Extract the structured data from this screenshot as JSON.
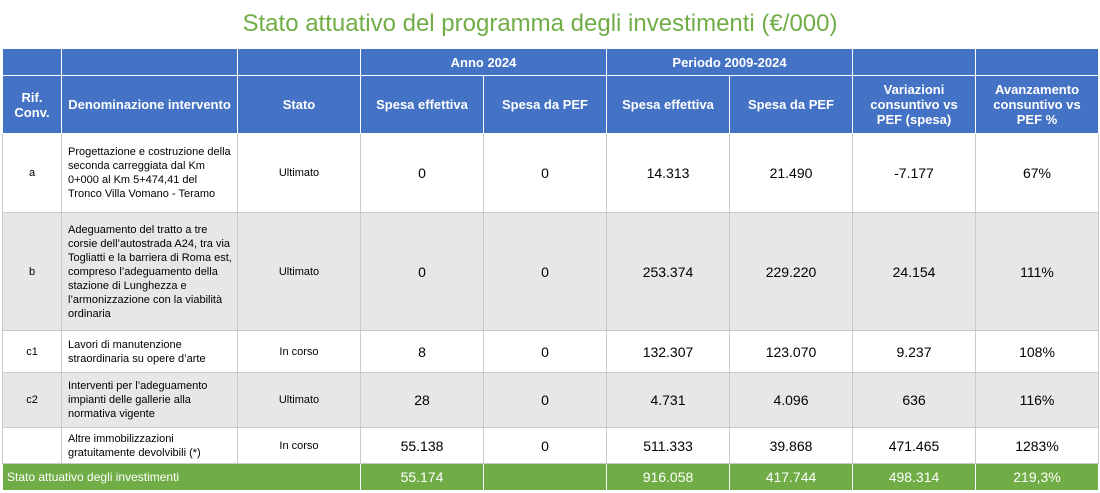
{
  "title": "Stato attuativo del programma degli investimenti (€/000)",
  "header": {
    "anno_2024": "Anno 2024",
    "periodo": "Periodo 2009-2024",
    "rif": "Rif. Conv.",
    "denominazione": "Denominazione intervento",
    "stato": "Stato",
    "spesa_effettiva": "Spesa effettiva",
    "spesa_pef": "Spesa da PEF",
    "variazioni": "Variazioni consuntivo vs PEF (spesa)",
    "avanzamento": "Avanzamento consuntivo vs PEF %"
  },
  "rows": [
    {
      "ref": "a",
      "desc": "Progettazione e costruzione della seconda carreggiata dal Km 0+000 al Km 5+474,41 del Tronco Villa Vomano - Teramo",
      "stato": "Ultimato",
      "eff2024": "0",
      "pef2024": "0",
      "eff_per": "14.313",
      "pef_per": "21.490",
      "var": "-7.177",
      "avz": "67%"
    },
    {
      "ref": "b",
      "desc": "Adeguamento del tratto a tre corsie dell’autostrada A24, tra via Togliatti e la barriera di Roma est, compreso l’adeguamento della stazione di Lunghezza e l’armonizzazione con la viabilità ordinaria",
      "stato": "Ultimato",
      "eff2024": "0",
      "pef2024": "0",
      "eff_per": "253.374",
      "pef_per": "229.220",
      "var": "24.154",
      "avz": "111%"
    },
    {
      "ref": "c1",
      "desc": "Lavori di manutenzione straordinaria su opere d’arte",
      "stato": "In corso",
      "eff2024": "8",
      "pef2024": "0",
      "eff_per": "132.307",
      "pef_per": "123.070",
      "var": "9.237",
      "avz": "108%"
    },
    {
      "ref": "c2",
      "desc": "Interventi per l’adeguamento impianti delle gallerie alla normativa vigente",
      "stato": "Ultimato",
      "eff2024": "28",
      "pef2024": "0",
      "eff_per": "4.731",
      "pef_per": "4.096",
      "var": "636",
      "avz": "116%"
    },
    {
      "ref": "",
      "desc": "Altre immobilizzazioni gratuitamente devolvibili (*)",
      "stato": "In corso",
      "eff2024": "55.138",
      "pef2024": "0",
      "eff_per": "511.333",
      "pef_per": "39.868",
      "var": "471.465",
      "avz": "1283%"
    }
  ],
  "total": {
    "label": "Stato attuativo degli investimenti",
    "eff2024": "55.174",
    "pef2024": "",
    "eff_per": "916.058",
    "pef_per": "417.744",
    "var": "498.314",
    "avz": "219,3%"
  }
}
